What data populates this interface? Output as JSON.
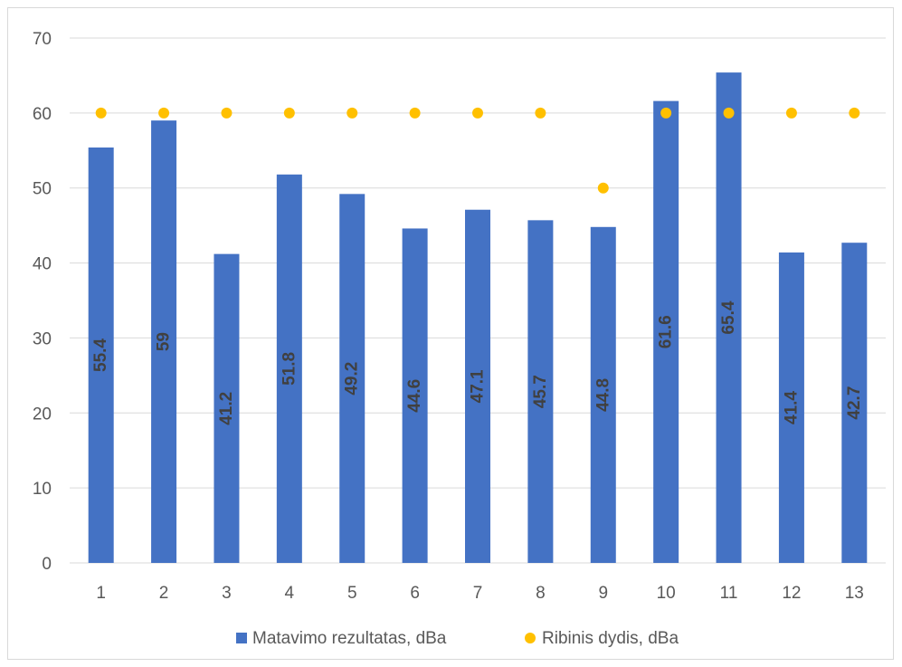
{
  "chart_data": {
    "type": "bar",
    "categories": [
      "1",
      "2",
      "3",
      "4",
      "5",
      "6",
      "7",
      "8",
      "9",
      "10",
      "11",
      "12",
      "13"
    ],
    "series": [
      {
        "name": "Matavimo rezultatas, dBa",
        "kind": "bar",
        "color": "#4472c4",
        "values": [
          55.4,
          59,
          41.2,
          51.8,
          49.2,
          44.6,
          47.1,
          45.7,
          44.8,
          61.6,
          65.4,
          41.4,
          42.7
        ],
        "data_labels": [
          "55.4",
          "59",
          "41.2",
          "51.8",
          "49.2",
          "44.6",
          "47.1",
          "45.7",
          "44.8",
          "61.6",
          "65.4",
          "41.4",
          "42.7"
        ]
      },
      {
        "name": "Ribinis dydis, dBa",
        "kind": "scatter",
        "color": "#ffc000",
        "values": [
          60,
          60,
          60,
          60,
          60,
          60,
          60,
          60,
          50,
          60,
          60,
          60,
          60
        ]
      }
    ],
    "ylim": [
      0,
      70
    ],
    "yticks": [
      "0",
      "10",
      "20",
      "30",
      "40",
      "50",
      "60",
      "70"
    ],
    "grid": true,
    "legend_position": "bottom"
  }
}
